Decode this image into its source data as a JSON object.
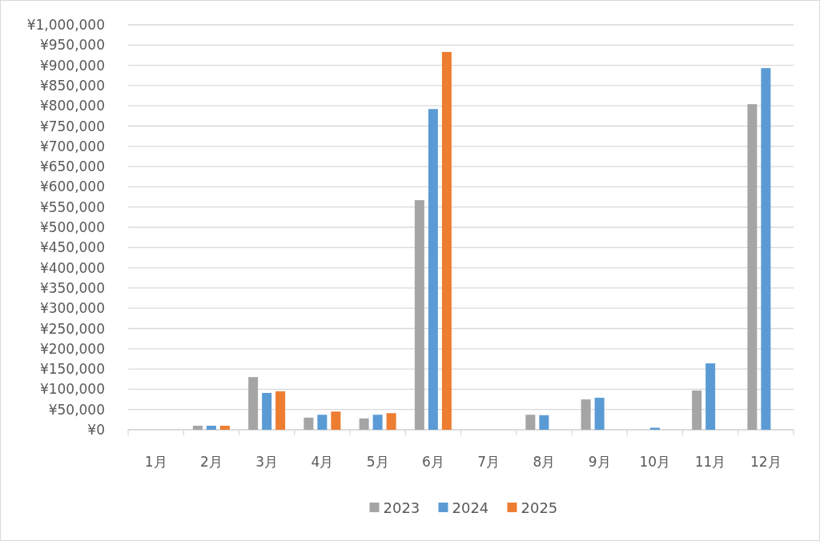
{
  "chart_data": {
    "type": "bar",
    "categories": [
      "1月",
      "2月",
      "3月",
      "4月",
      "5月",
      "6月",
      "7月",
      "8月",
      "9月",
      "10月",
      "11月",
      "12月"
    ],
    "series": [
      {
        "name": "2023",
        "color": "#a5a5a5",
        "values": [
          0,
          10000,
          130000,
          30000,
          28000,
          567000,
          0,
          37000,
          75000,
          0,
          97000,
          804000
        ]
      },
      {
        "name": "2024",
        "color": "#5b9bd5",
        "values": [
          0,
          10000,
          91000,
          37000,
          37000,
          792000,
          0,
          36000,
          79000,
          5000,
          164000,
          893000
        ]
      },
      {
        "name": "2025",
        "color": "#ed7d31",
        "values": [
          null,
          10000,
          95000,
          45000,
          41000,
          933000,
          null,
          null,
          null,
          null,
          null,
          null
        ]
      }
    ],
    "ylim": [
      0,
      1000000
    ],
    "yticks": [
      {
        "value": 0,
        "label": "¥0"
      },
      {
        "value": 50000,
        "label": "¥50,000"
      },
      {
        "value": 100000,
        "label": "¥100,000"
      },
      {
        "value": 150000,
        "label": "¥150,000"
      },
      {
        "value": 200000,
        "label": "¥200,000"
      },
      {
        "value": 250000,
        "label": "¥250,000"
      },
      {
        "value": 300000,
        "label": "¥300,000"
      },
      {
        "value": 350000,
        "label": "¥350,000"
      },
      {
        "value": 400000,
        "label": "¥400,000"
      },
      {
        "value": 450000,
        "label": "¥450,000"
      },
      {
        "value": 500000,
        "label": "¥500,000"
      },
      {
        "value": 550000,
        "label": "¥550,000"
      },
      {
        "value": 600000,
        "label": "¥600,000"
      },
      {
        "value": 650000,
        "label": "¥650,000"
      },
      {
        "value": 700000,
        "label": "¥700,000"
      },
      {
        "value": 750000,
        "label": "¥750,000"
      },
      {
        "value": 800000,
        "label": "¥800,000"
      },
      {
        "value": 850000,
        "label": "¥850,000"
      },
      {
        "value": 900000,
        "label": "¥900,000"
      },
      {
        "value": 950000,
        "label": "¥950,000"
      },
      {
        "value": 1000000,
        "label": "¥1,000,000"
      }
    ],
    "grid": "y",
    "legend": "bottom"
  }
}
